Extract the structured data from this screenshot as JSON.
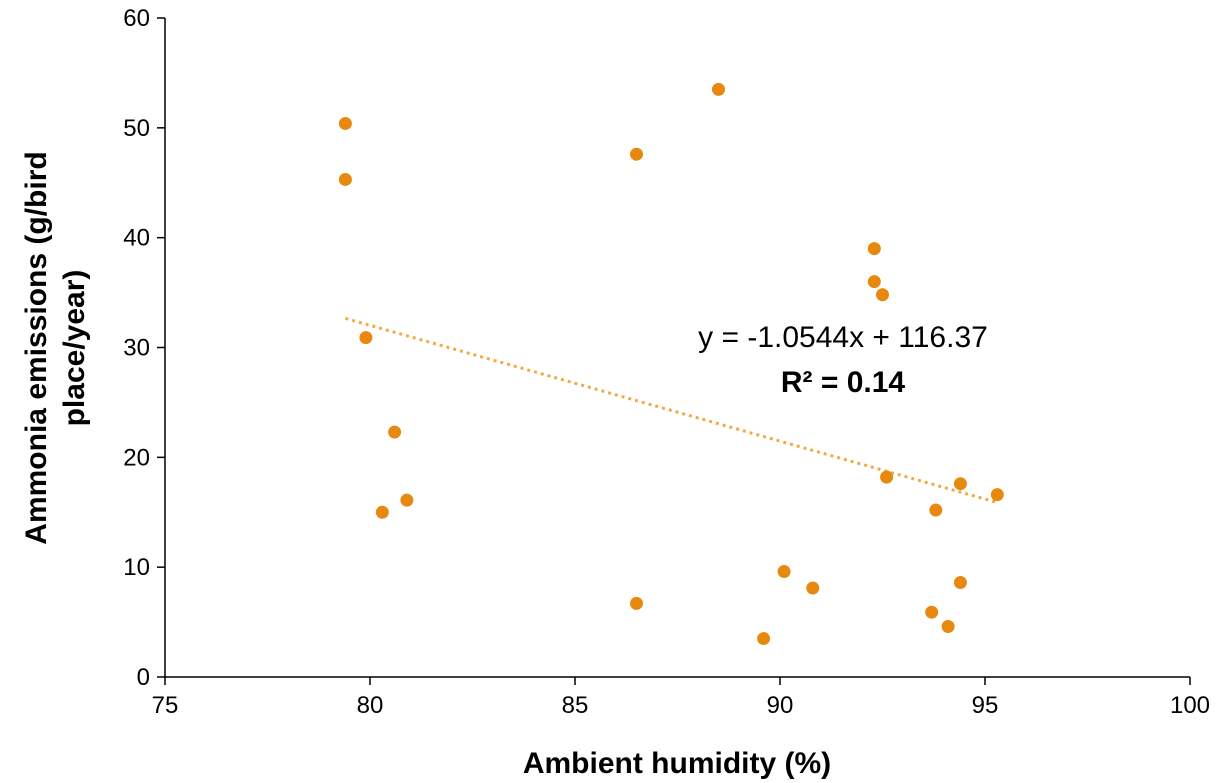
{
  "chart_data": {
    "type": "scatter",
    "xlabel": "Ambient humidity (%)",
    "ylabel_lines": [
      "Ammonia emissions (g/bird",
      "place/year)"
    ],
    "xlim": [
      75,
      100
    ],
    "ylim": [
      0,
      60
    ],
    "x_ticks": [
      75,
      80,
      85,
      90,
      95,
      100
    ],
    "y_ticks": [
      0,
      10,
      20,
      30,
      40,
      50,
      60
    ],
    "x_tick_labels": [
      "75",
      "80",
      "85",
      "90",
      "95",
      "100"
    ],
    "y_tick_labels": [
      "0",
      "10",
      "20",
      "30",
      "40",
      "50",
      "60"
    ],
    "grid": false,
    "marker_color": "#e8890f",
    "trendline_color": "#f5a843",
    "series": [
      {
        "points": [
          {
            "x": 79.4,
            "y": 50.4
          },
          {
            "x": 79.4,
            "y": 45.3
          },
          {
            "x": 79.9,
            "y": 30.9
          },
          {
            "x": 80.3,
            "y": 15.0
          },
          {
            "x": 80.6,
            "y": 22.3
          },
          {
            "x": 80.9,
            "y": 16.1
          },
          {
            "x": 86.5,
            "y": 6.7
          },
          {
            "x": 86.5,
            "y": 47.6
          },
          {
            "x": 88.5,
            "y": 53.5
          },
          {
            "x": 89.6,
            "y": 3.5
          },
          {
            "x": 90.1,
            "y": 9.6
          },
          {
            "x": 90.8,
            "y": 8.1
          },
          {
            "x": 92.3,
            "y": 39.0
          },
          {
            "x": 92.3,
            "y": 36.0
          },
          {
            "x": 92.5,
            "y": 34.8
          },
          {
            "x": 92.6,
            "y": 18.2
          },
          {
            "x": 93.7,
            "y": 5.9
          },
          {
            "x": 93.8,
            "y": 15.2
          },
          {
            "x": 94.1,
            "y": 4.6
          },
          {
            "x": 94.4,
            "y": 17.6
          },
          {
            "x": 94.4,
            "y": 8.6
          },
          {
            "x": 95.3,
            "y": 16.6
          }
        ]
      }
    ],
    "trendline": {
      "slope": -1.0544,
      "intercept": 116.37,
      "x_range": [
        79.4,
        95.3
      ],
      "equation_label": "y = -1.0544x + 116.37",
      "r2_label": "R² = 0.14"
    }
  }
}
